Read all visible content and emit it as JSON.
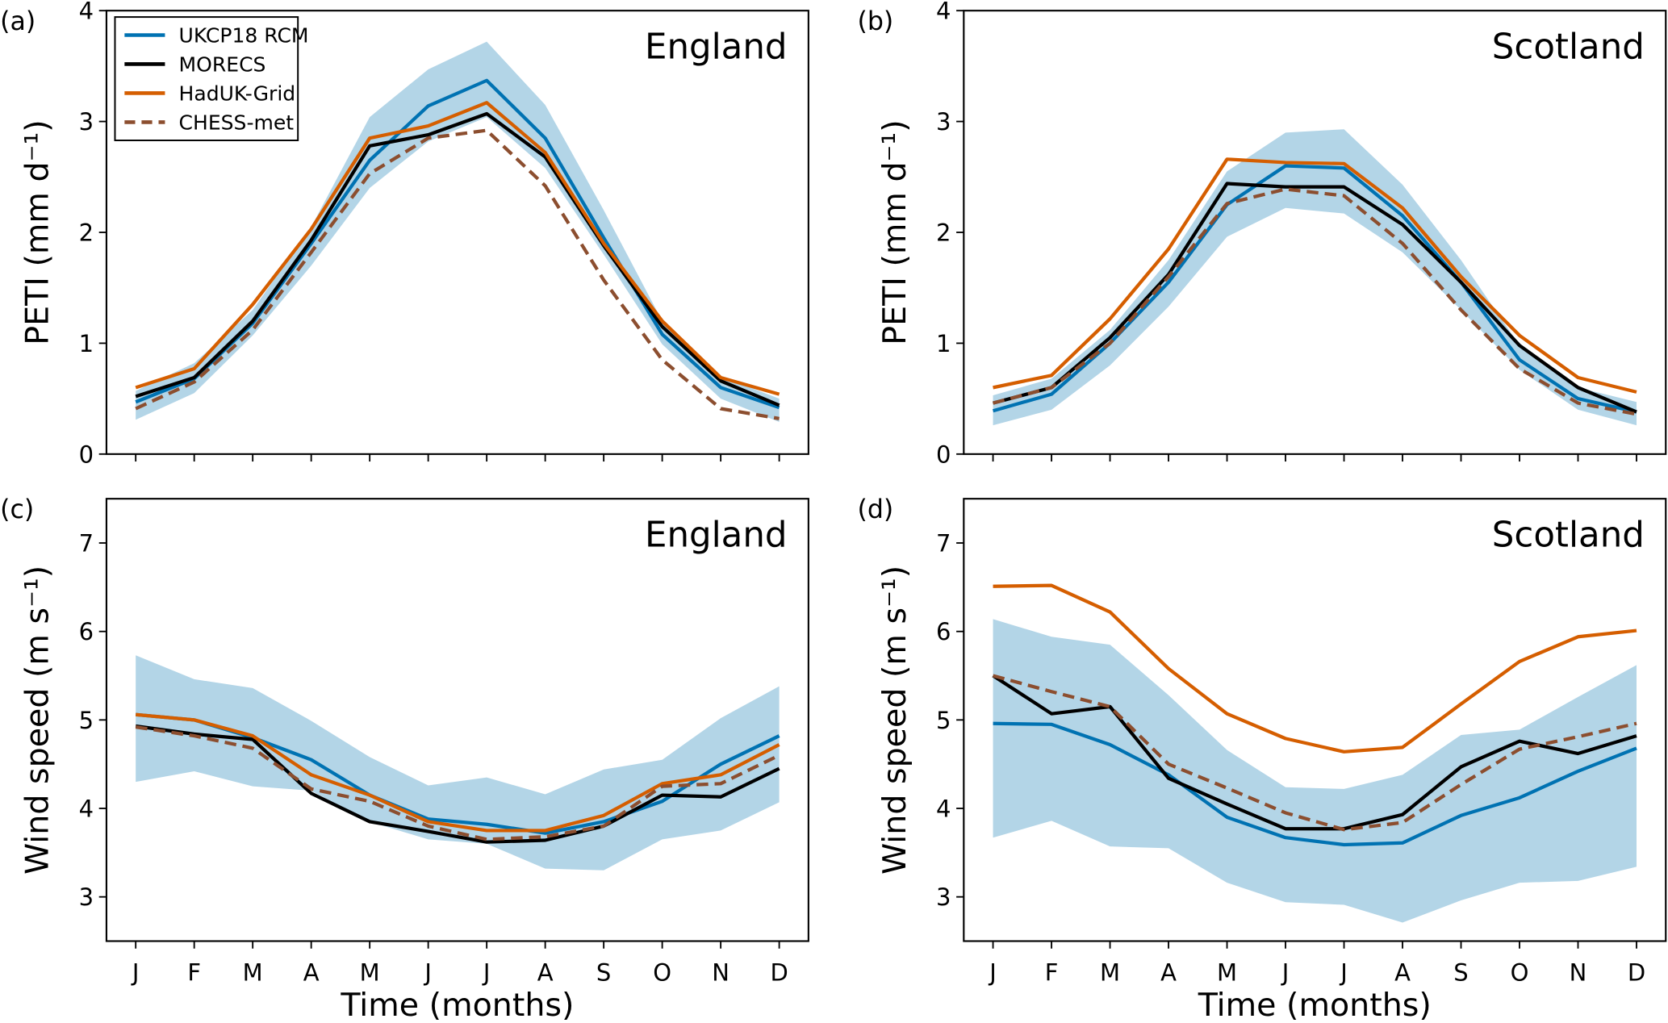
{
  "colors": {
    "UKCP18 RCM": "#0072b2",
    "MORECS": "#000000",
    "HadUK-Grid": "#d55e00",
    "CHESS-met": "#8c4e2f",
    "band": "#b3d5e7"
  },
  "legend": [
    "UKCP18 RCM",
    "MORECS",
    "HadUK-Grid",
    "CHESS-met"
  ],
  "chart_data": [
    {
      "type": "line",
      "panel": "(a)",
      "region": "England",
      "ylabel": "PETI (mm d⁻¹)",
      "xlabel": "",
      "ylim": [
        0,
        4
      ],
      "yticks": [
        0,
        1,
        2,
        3,
        4
      ],
      "categories": [
        "J",
        "F",
        "M",
        "A",
        "M",
        "J",
        "J",
        "A",
        "S",
        "O",
        "N",
        "D"
      ],
      "band": {
        "name": "UKCP18 RCM range",
        "low": [
          0.31,
          0.55,
          1.07,
          1.7,
          2.4,
          2.82,
          3.04,
          2.58,
          1.8,
          0.99,
          0.5,
          0.29
        ],
        "high": [
          0.57,
          0.82,
          1.3,
          2.05,
          3.04,
          3.47,
          3.72,
          3.15,
          2.2,
          1.2,
          0.7,
          0.5
        ]
      },
      "series": [
        {
          "name": "UKCP18 RCM",
          "values": [
            0.47,
            0.68,
            1.18,
            1.9,
            2.65,
            3.14,
            3.37,
            2.85,
            1.95,
            1.08,
            0.6,
            0.42
          ]
        },
        {
          "name": "MORECS",
          "values": [
            0.52,
            0.69,
            1.2,
            1.93,
            2.78,
            2.88,
            3.07,
            2.68,
            1.88,
            1.15,
            0.66,
            0.44
          ]
        },
        {
          "name": "HadUK-Grid",
          "values": [
            0.6,
            0.77,
            1.35,
            2.03,
            2.85,
            2.96,
            3.17,
            2.72,
            1.9,
            1.2,
            0.69,
            0.54
          ]
        },
        {
          "name": "CHESS-met",
          "values": [
            0.41,
            0.65,
            1.12,
            1.82,
            2.53,
            2.85,
            2.92,
            2.42,
            1.57,
            0.85,
            0.41,
            0.32
          ]
        }
      ]
    },
    {
      "type": "line",
      "panel": "(b)",
      "region": "Scotland",
      "ylabel": "PETI (mm d⁻¹)",
      "xlabel": "",
      "ylim": [
        0,
        4
      ],
      "yticks": [
        0,
        1,
        2,
        3,
        4
      ],
      "categories": [
        "J",
        "F",
        "M",
        "A",
        "M",
        "J",
        "J",
        "A",
        "S",
        "O",
        "N",
        "D"
      ],
      "band": {
        "name": "UKCP18 RCM range",
        "low": [
          0.26,
          0.4,
          0.8,
          1.33,
          1.96,
          2.22,
          2.17,
          1.82,
          1.3,
          0.76,
          0.4,
          0.26
        ],
        "high": [
          0.53,
          0.68,
          1.12,
          1.75,
          2.55,
          2.9,
          2.93,
          2.43,
          1.75,
          0.98,
          0.6,
          0.47
        ]
      },
      "series": [
        {
          "name": "UKCP18 RCM",
          "values": [
            0.39,
            0.54,
            1.0,
            1.55,
            2.25,
            2.6,
            2.58,
            2.15,
            1.55,
            0.85,
            0.5,
            0.38
          ]
        },
        {
          "name": "MORECS",
          "values": [
            0.46,
            0.6,
            1.05,
            1.62,
            2.44,
            2.41,
            2.41,
            2.07,
            1.55,
            0.98,
            0.6,
            0.38
          ]
        },
        {
          "name": "HadUK-Grid",
          "values": [
            0.6,
            0.71,
            1.22,
            1.85,
            2.66,
            2.63,
            2.62,
            2.22,
            1.6,
            1.07,
            0.69,
            0.56
          ]
        },
        {
          "name": "CHESS-met",
          "values": [
            0.46,
            0.6,
            1.0,
            1.6,
            2.26,
            2.39,
            2.33,
            1.9,
            1.3,
            0.77,
            0.46,
            0.36
          ]
        }
      ]
    },
    {
      "type": "line",
      "panel": "(c)",
      "region": "England",
      "ylabel": "Wind speed (m s⁻¹)",
      "xlabel": "Time (months)",
      "ylim": [
        2.5,
        7.5
      ],
      "yticks": [
        3,
        4,
        5,
        6,
        7
      ],
      "categories": [
        "J",
        "F",
        "M",
        "A",
        "M",
        "J",
        "J",
        "A",
        "S",
        "O",
        "N",
        "D"
      ],
      "band": {
        "name": "UKCP18 RCM range",
        "low": [
          4.3,
          4.42,
          4.25,
          4.2,
          3.85,
          3.65,
          3.6,
          3.32,
          3.3,
          3.65,
          3.75,
          4.07
        ],
        "high": [
          5.73,
          5.46,
          5.36,
          4.99,
          4.58,
          4.26,
          4.35,
          4.16,
          4.44,
          4.55,
          5.02,
          5.38
        ]
      },
      "series": [
        {
          "name": "UKCP18 RCM",
          "values": [
            5.06,
            5.0,
            4.8,
            4.55,
            4.15,
            3.88,
            3.82,
            3.72,
            3.85,
            4.08,
            4.5,
            4.82
          ]
        },
        {
          "name": "MORECS",
          "values": [
            4.93,
            4.84,
            4.78,
            4.17,
            3.85,
            3.74,
            3.62,
            3.64,
            3.8,
            4.15,
            4.13,
            4.45
          ]
        },
        {
          "name": "HadUK-Grid",
          "values": [
            5.06,
            5.0,
            4.82,
            4.38,
            4.15,
            3.85,
            3.75,
            3.75,
            3.92,
            4.28,
            4.38,
            4.72
          ]
        },
        {
          "name": "CHESS-met",
          "values": [
            4.92,
            4.82,
            4.68,
            4.22,
            4.08,
            3.8,
            3.65,
            3.68,
            3.8,
            4.25,
            4.28,
            4.6
          ]
        }
      ]
    },
    {
      "type": "line",
      "panel": "(d)",
      "region": "Scotland",
      "ylabel": "Wind speed (m s⁻¹)",
      "xlabel": "Time (months)",
      "ylim": [
        2.5,
        7.5
      ],
      "yticks": [
        3,
        4,
        5,
        6,
        7
      ],
      "categories": [
        "J",
        "F",
        "M",
        "A",
        "M",
        "J",
        "J",
        "A",
        "S",
        "O",
        "N",
        "D"
      ],
      "band": {
        "name": "UKCP18 RCM range",
        "low": [
          3.67,
          3.86,
          3.57,
          3.55,
          3.16,
          2.94,
          2.91,
          2.71,
          2.96,
          3.16,
          3.18,
          3.34
        ],
        "high": [
          6.14,
          5.94,
          5.85,
          5.28,
          4.66,
          4.24,
          4.22,
          4.38,
          4.83,
          4.89,
          5.26,
          5.62
        ]
      },
      "series": [
        {
          "name": "UKCP18 RCM",
          "values": [
            4.96,
            4.95,
            4.72,
            4.38,
            3.9,
            3.67,
            3.59,
            3.61,
            3.92,
            4.12,
            4.42,
            4.68
          ]
        },
        {
          "name": "MORECS",
          "values": [
            5.5,
            5.07,
            5.15,
            4.34,
            4.05,
            3.77,
            3.77,
            3.93,
            4.47,
            4.76,
            4.62,
            4.82
          ]
        },
        {
          "name": "HadUK-Grid",
          "values": [
            6.51,
            6.52,
            6.22,
            5.58,
            5.07,
            4.79,
            4.64,
            4.69,
            5.18,
            5.66,
            5.94,
            6.01
          ]
        },
        {
          "name": "CHESS-met",
          "values": [
            5.5,
            5.32,
            5.15,
            4.5,
            4.23,
            3.95,
            3.76,
            3.84,
            4.27,
            4.67,
            4.81,
            4.96
          ]
        }
      ]
    }
  ]
}
